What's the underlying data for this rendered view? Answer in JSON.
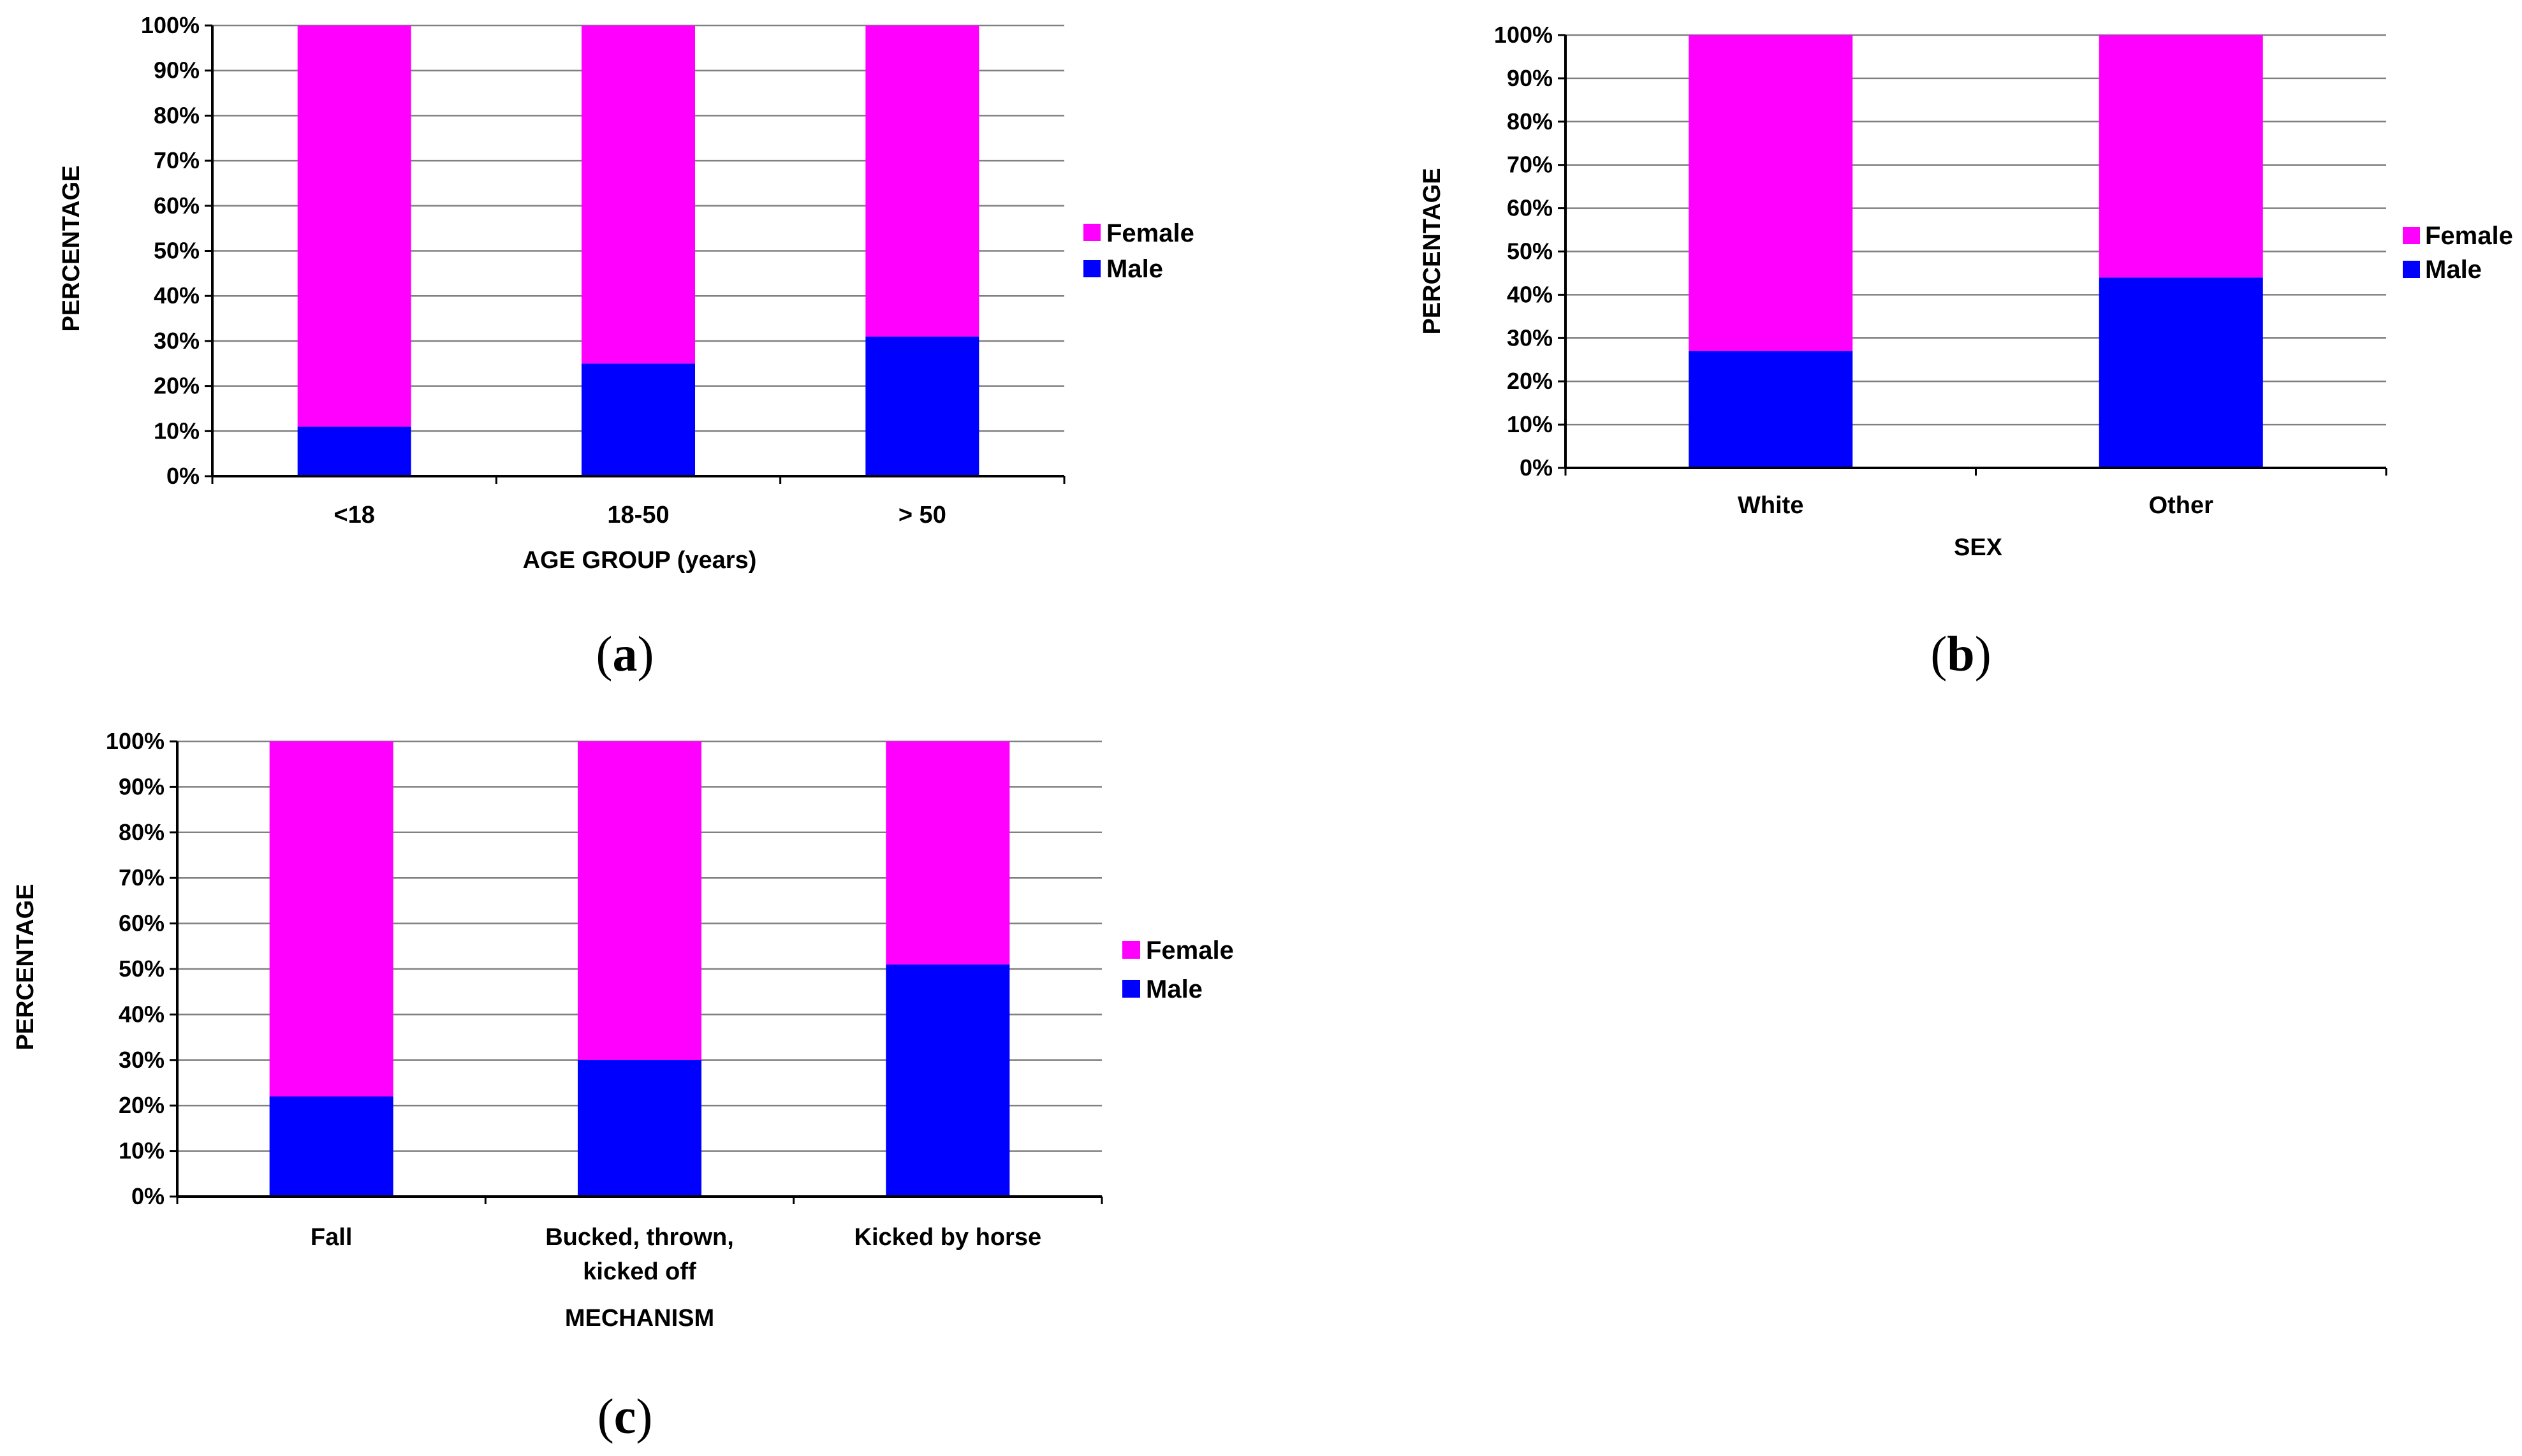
{
  "colors": {
    "female": "#ff00ff",
    "male": "#0000ff",
    "gridline": "#808080",
    "axis": "#000000"
  },
  "chart_data": [
    {
      "type": "bar",
      "stacked": true,
      "panel_label": "a",
      "title": "",
      "categories": [
        "<18",
        "18-50",
        "> 50"
      ],
      "series": [
        {
          "name": "Male",
          "values": [
            11,
            25,
            31
          ]
        },
        {
          "name": "Female",
          "values": [
            89,
            75,
            69
          ]
        }
      ],
      "legend": [
        "Female",
        "Male"
      ],
      "xlabel": "AGE GROUP (years)",
      "ylabel": "PERCENTAGE",
      "ylim": [
        0,
        100
      ],
      "yticks": [
        "0%",
        "10%",
        "20%",
        "30%",
        "40%",
        "50%",
        "60%",
        "70%",
        "80%",
        "90%",
        "100%"
      ],
      "grid": true,
      "legend_position": "right"
    },
    {
      "type": "bar",
      "stacked": true,
      "panel_label": "b",
      "title": "",
      "categories": [
        "White",
        "Other"
      ],
      "series": [
        {
          "name": "Male",
          "values": [
            27,
            44
          ]
        },
        {
          "name": "Female",
          "values": [
            73,
            56
          ]
        }
      ],
      "legend": [
        "Female",
        "Male"
      ],
      "xlabel": "SEX",
      "ylabel": "PERCENTAGE",
      "ylim": [
        0,
        100
      ],
      "yticks": [
        "0%",
        "10%",
        "20%",
        "30%",
        "40%",
        "50%",
        "60%",
        "70%",
        "80%",
        "90%",
        "100%"
      ],
      "grid": true,
      "legend_position": "right"
    },
    {
      "type": "bar",
      "stacked": true,
      "panel_label": "c",
      "title": "",
      "categories": [
        [
          "Fall"
        ],
        [
          "Bucked, thrown,",
          "kicked off"
        ],
        [
          "Kicked by horse"
        ]
      ],
      "series": [
        {
          "name": "Male",
          "values": [
            22,
            30,
            51
          ]
        },
        {
          "name": "Female",
          "values": [
            78,
            70,
            49
          ]
        }
      ],
      "legend": [
        "Female",
        "Male"
      ],
      "xlabel": "MECHANISM",
      "ylabel": "PERCENTAGE",
      "ylim": [
        0,
        100
      ],
      "yticks": [
        "0%",
        "10%",
        "20%",
        "30%",
        "40%",
        "50%",
        "60%",
        "70%",
        "80%",
        "90%",
        "100%"
      ],
      "grid": true,
      "legend_position": "right"
    }
  ]
}
